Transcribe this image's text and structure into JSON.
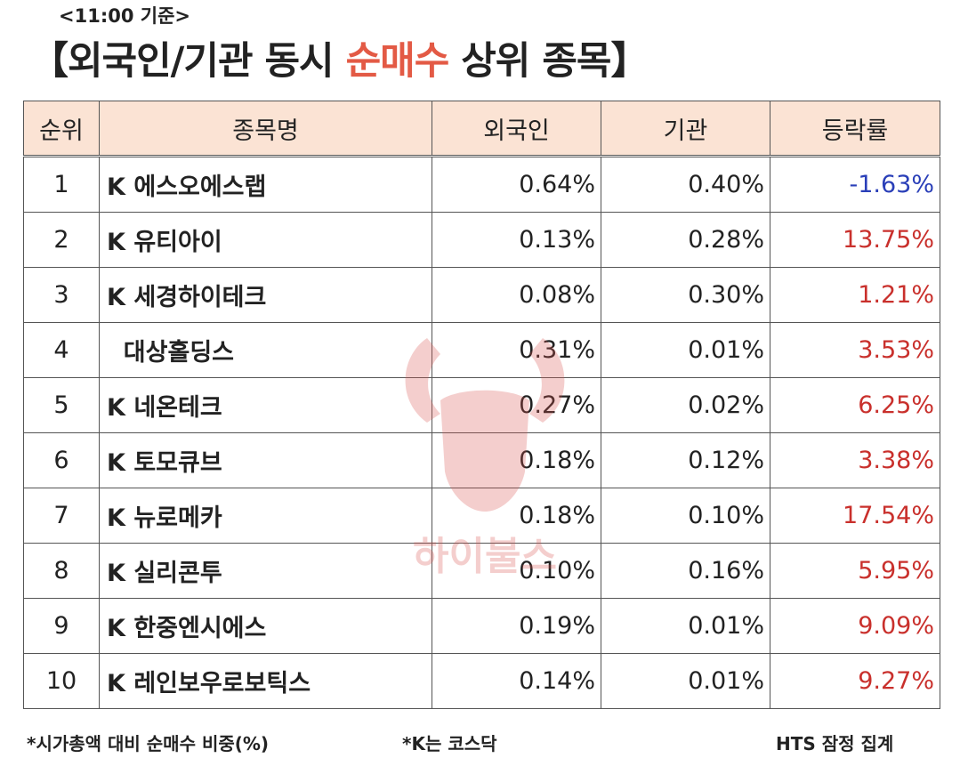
{
  "time_label": "<11:00 기준>",
  "title": {
    "prefix": "【외국인/기관 동시 ",
    "highlight": "순매수",
    "suffix": " 상위 종목】"
  },
  "colors": {
    "highlight": "#e35a45",
    "header_bg": "#fbe3d4",
    "negative": "#2a3fb8",
    "positive": "#c9302c"
  },
  "table": {
    "headers": [
      "순위",
      "종목명",
      "외국인",
      "기관",
      "등락률"
    ],
    "rows": [
      {
        "rank": "1",
        "name": "K 에스오에스랩",
        "foreign": "0.64%",
        "institution": "0.40%",
        "change": "-1.63%",
        "direction": "neg"
      },
      {
        "rank": "2",
        "name": "K 유티아이",
        "foreign": "0.13%",
        "institution": "0.28%",
        "change": "13.75%",
        "direction": "pos"
      },
      {
        "rank": "3",
        "name": "K 세경하이테크",
        "foreign": "0.08%",
        "institution": "0.30%",
        "change": "1.21%",
        "direction": "pos"
      },
      {
        "rank": "4",
        "name": "  대상홀딩스",
        "foreign": "0.31%",
        "institution": "0.01%",
        "change": "3.53%",
        "direction": "pos"
      },
      {
        "rank": "5",
        "name": "K 네온테크",
        "foreign": "0.27%",
        "institution": "0.02%",
        "change": "6.25%",
        "direction": "pos"
      },
      {
        "rank": "6",
        "name": "K 토모큐브",
        "foreign": "0.18%",
        "institution": "0.12%",
        "change": "3.38%",
        "direction": "pos"
      },
      {
        "rank": "7",
        "name": "K 뉴로메카",
        "foreign": "0.18%",
        "institution": "0.10%",
        "change": "17.54%",
        "direction": "pos"
      },
      {
        "rank": "8",
        "name": "K 실리콘투",
        "foreign": "0.10%",
        "institution": "0.16%",
        "change": "5.95%",
        "direction": "pos"
      },
      {
        "rank": "9",
        "name": "K 한중엔시에스",
        "foreign": "0.19%",
        "institution": "0.01%",
        "change": "9.09%",
        "direction": "pos"
      },
      {
        "rank": "10",
        "name": "K 레인보우로보틱스",
        "foreign": "0.14%",
        "institution": "0.01%",
        "change": "9.27%",
        "direction": "pos"
      }
    ]
  },
  "watermark": {
    "icon": "bull-head-icon",
    "text": "하이불스"
  },
  "footer": {
    "note1": "*시가총액 대비 순매수 비중(%)",
    "note2": "*K는 코스닥",
    "note3": "HTS 잠정 집계"
  }
}
